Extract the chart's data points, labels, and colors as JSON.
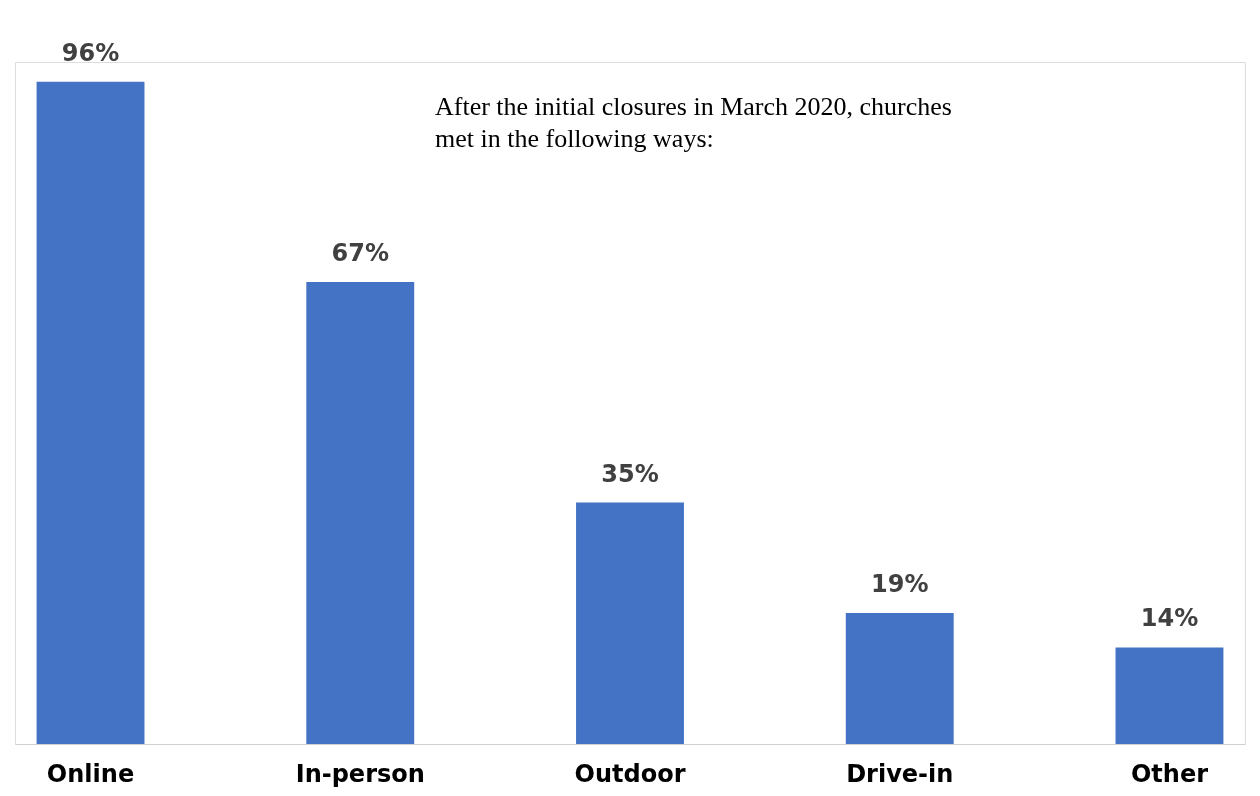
{
  "chart_data": {
    "type": "bar",
    "categories": [
      "Online",
      "In-person",
      "Outdoor",
      "Drive-in",
      "Other"
    ],
    "values": [
      96,
      67,
      35,
      19,
      14
    ],
    "value_labels": [
      "96%",
      "67%",
      "35%",
      "19%",
      "14%"
    ],
    "color": "#4472c4",
    "annotations": [
      "After the initial closures in March 2020, churches met in the following ways:"
    ]
  }
}
